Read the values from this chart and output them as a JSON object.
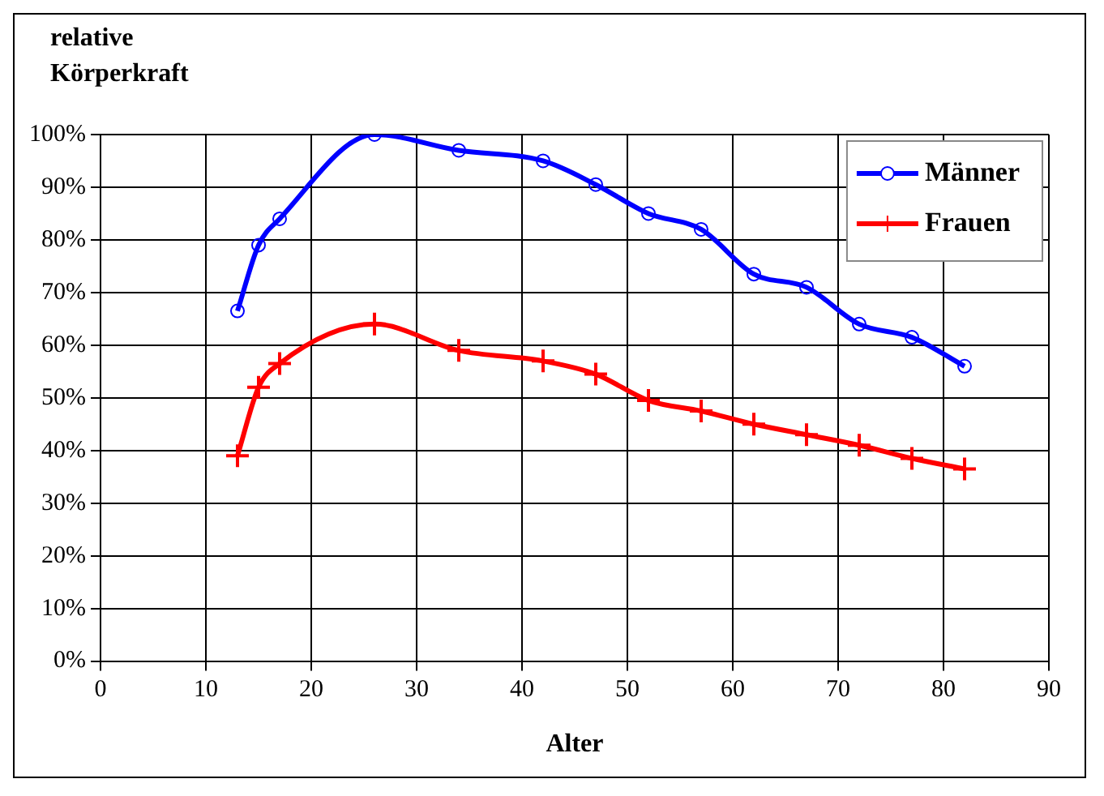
{
  "chart_data": {
    "type": "line",
    "ylabel": "relative Körperkraft",
    "xlabel": "Alter",
    "x": [
      13,
      15,
      17,
      26,
      34,
      42,
      47,
      52,
      57,
      62,
      67,
      72,
      77,
      82
    ],
    "series": [
      {
        "name": "Männer",
        "color": "#0000ff",
        "marker": "circle",
        "values": [
          66.5,
          79,
          84,
          100,
          97,
          95,
          90.5,
          85,
          82,
          73.5,
          71,
          64,
          61.5,
          56
        ]
      },
      {
        "name": "Frauen",
        "color": "#ff0000",
        "marker": "cross",
        "values": [
          39,
          52,
          56.5,
          64,
          59,
          57,
          54.5,
          49.5,
          47.5,
          45,
          43,
          41,
          38.5,
          36.5
        ]
      }
    ],
    "xlim": [
      0,
      90
    ],
    "xticks": [
      0,
      10,
      20,
      30,
      40,
      50,
      60,
      70,
      80,
      90
    ],
    "ylim": [
      0,
      100
    ],
    "yticks": [
      {
        "value": 0,
        "label": "0%"
      },
      {
        "value": 10,
        "label": "10%"
      },
      {
        "value": 20,
        "label": "20%"
      },
      {
        "value": 30,
        "label": "30%"
      },
      {
        "value": 40,
        "label": "40%"
      },
      {
        "value": 50,
        "label": "50%"
      },
      {
        "value": 60,
        "label": "60%"
      },
      {
        "value": 70,
        "label": "70%"
      },
      {
        "value": 80,
        "label": "80%"
      },
      {
        "value": 90,
        "label": "90%"
      },
      {
        "value": 100,
        "label": "100%"
      }
    ],
    "grid": true,
    "legend": "top right",
    "line_style": "solid"
  }
}
